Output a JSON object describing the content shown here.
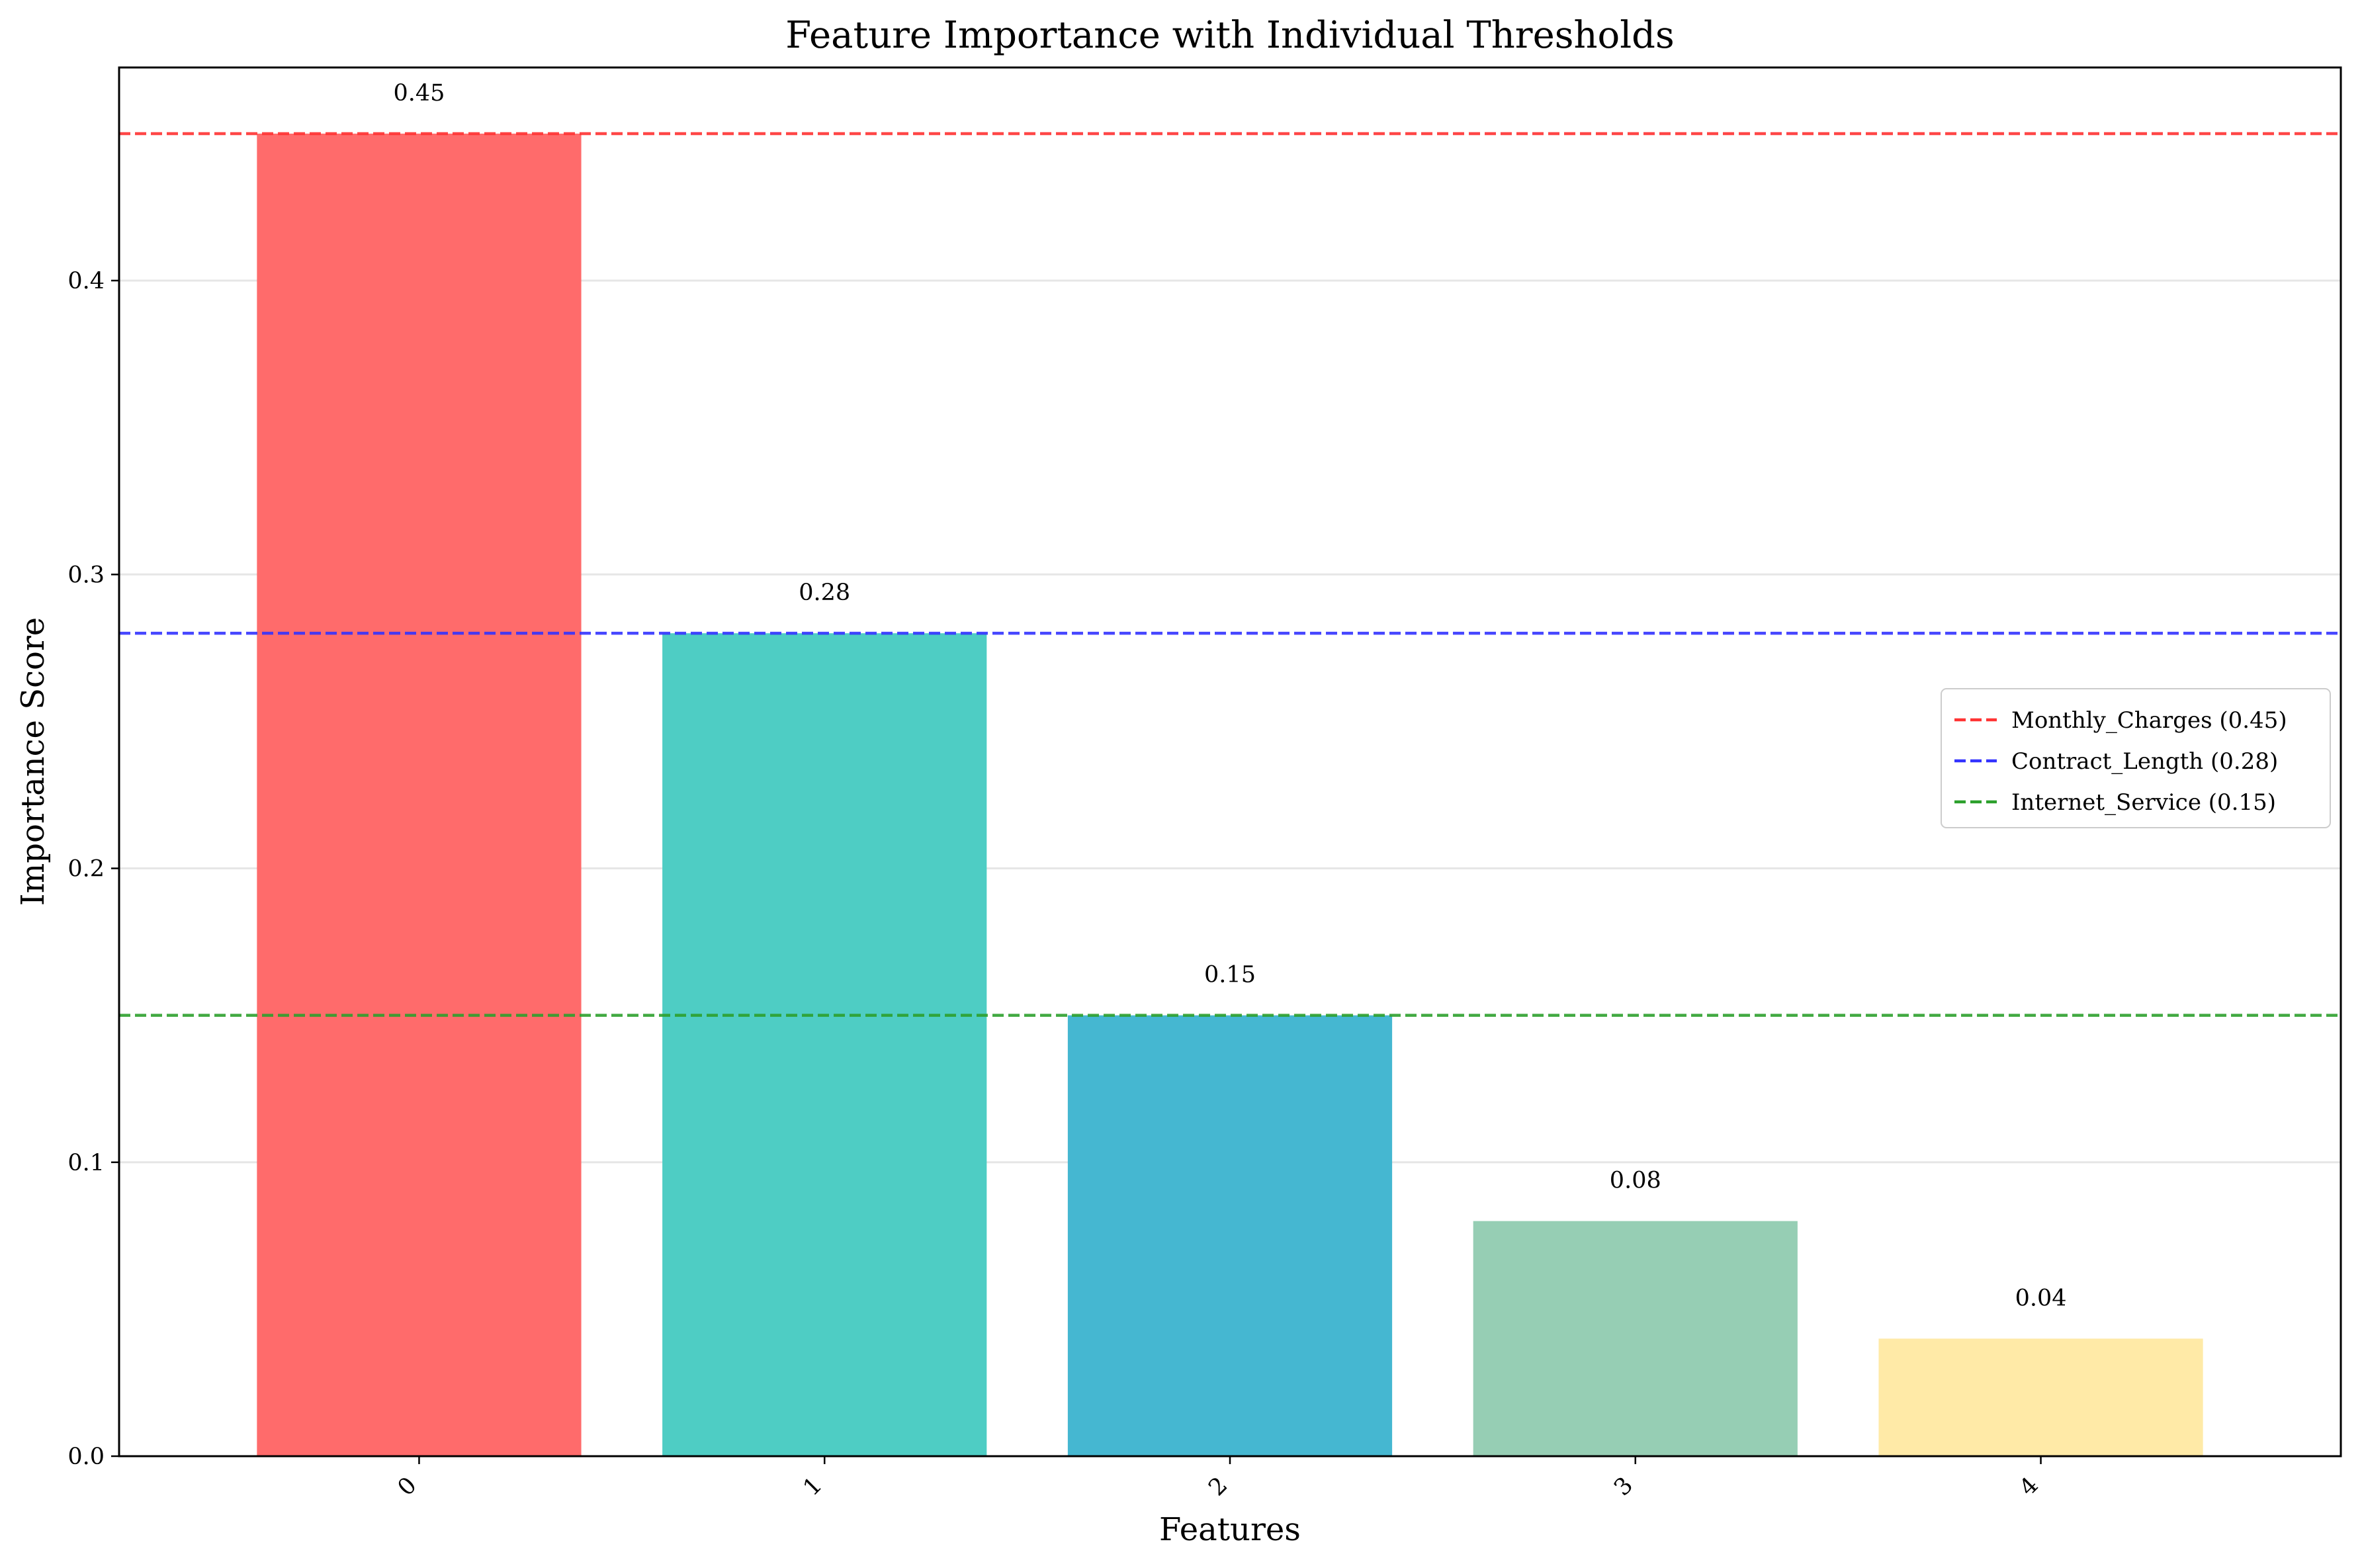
{
  "chart_data": {
    "type": "bar",
    "title": "Feature Importance with Individual Thresholds",
    "xlabel": "Features",
    "ylabel": "Importance Score",
    "categories": [
      "0",
      "1",
      "2",
      "3",
      "4"
    ],
    "values": [
      0.45,
      0.28,
      0.15,
      0.08,
      0.04
    ],
    "value_labels": [
      "0.45",
      "0.28",
      "0.15",
      "0.08",
      "0.04"
    ],
    "bar_colors": [
      "#ff6b6b",
      "#4ecdc4",
      "#45b7d1",
      "#96ceb4",
      "#ffeaa7"
    ],
    "ylim": [
      0,
      0.4725
    ],
    "yticks": [
      0.0,
      0.1,
      0.2,
      0.3,
      0.4
    ],
    "ytick_labels": [
      "0.0",
      "0.1",
      "0.2",
      "0.3",
      "0.4"
    ],
    "xtick_rotation": 45,
    "grid": "y",
    "thresholds": [
      {
        "label": "Monthly_Charges (0.45)",
        "value": 0.45,
        "color": "#ff3333",
        "style": "dashed"
      },
      {
        "label": "Contract_Length (0.28)",
        "value": 0.28,
        "color": "#3333ff",
        "style": "dashed"
      },
      {
        "label": "Internet_Service (0.15)",
        "value": 0.15,
        "color": "#2ca02c",
        "style": "dashed"
      }
    ],
    "legend": {
      "placement": "right"
    }
  }
}
